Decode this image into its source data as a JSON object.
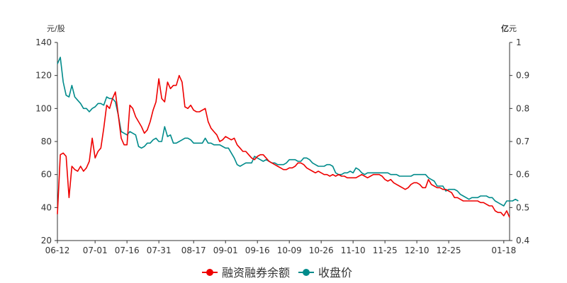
{
  "chart_data": {
    "type": "line",
    "left_unit": "元/股",
    "right_unit_bold": "亿",
    "right_unit_rest": "元",
    "left_axis": {
      "min": 20,
      "max": 140,
      "ticks": [
        "20",
        "40",
        "60",
        "80",
        "100",
        "120",
        "140"
      ]
    },
    "right_axis": {
      "min": 0.4,
      "max": 1.0,
      "ticks": [
        "0.4",
        "0.5",
        "0.6",
        "0.7",
        "0.8",
        "0.9",
        "1"
      ]
    },
    "x_tick_labels": [
      "06-12",
      "07-01",
      "07-16",
      "07-31",
      "08-17",
      "09-01",
      "09-16",
      "10-09",
      "10-26",
      "11-10",
      "11-25",
      "12-10",
      "12-25",
      "01-18"
    ],
    "x_tick_index": [
      0,
      13,
      24,
      35,
      47,
      58,
      69,
      80,
      91,
      102,
      113,
      124,
      135,
      154
    ],
    "series": [
      {
        "name": "融资融券余额",
        "axis": "right",
        "color": "#ee0000",
        "values": [
          0.48,
          0.66,
          0.665,
          0.655,
          0.53,
          0.625,
          0.615,
          0.61,
          0.625,
          0.61,
          0.62,
          0.64,
          0.71,
          0.65,
          0.67,
          0.68,
          0.74,
          0.81,
          0.8,
          0.83,
          0.85,
          0.78,
          0.71,
          0.69,
          0.69,
          0.81,
          0.8,
          0.775,
          0.76,
          0.745,
          0.725,
          0.735,
          0.76,
          0.795,
          0.82,
          0.89,
          0.83,
          0.82,
          0.88,
          0.86,
          0.87,
          0.87,
          0.9,
          0.88,
          0.805,
          0.8,
          0.81,
          0.795,
          0.79,
          0.79,
          0.795,
          0.8,
          0.76,
          0.74,
          0.73,
          0.72,
          0.7,
          0.705,
          0.715,
          0.71,
          0.705,
          0.71,
          0.69,
          0.68,
          0.67,
          0.67,
          0.66,
          0.65,
          0.645,
          0.655,
          0.66,
          0.66,
          0.65,
          0.64,
          0.635,
          0.63,
          0.625,
          0.62,
          0.615,
          0.615,
          0.62,
          0.62,
          0.625,
          0.635,
          0.635,
          0.63,
          0.62,
          0.615,
          0.61,
          0.605,
          0.61,
          0.605,
          0.6,
          0.6,
          0.595,
          0.6,
          0.595,
          0.6,
          0.595,
          0.595,
          0.59,
          0.59,
          0.59,
          0.59,
          0.595,
          0.6,
          0.595,
          0.59,
          0.595,
          0.6,
          0.6,
          0.6,
          0.595,
          0.585,
          0.58,
          0.585,
          0.575,
          0.57,
          0.565,
          0.56,
          0.555,
          0.56,
          0.57,
          0.575,
          0.575,
          0.57,
          0.56,
          0.56,
          0.585,
          0.57,
          0.565,
          0.56,
          0.56,
          0.555,
          0.555,
          0.55,
          0.545,
          0.53,
          0.53,
          0.525,
          0.52,
          0.52,
          0.52,
          0.52,
          0.52,
          0.52,
          0.515,
          0.515,
          0.51,
          0.505,
          0.505,
          0.49,
          0.485,
          0.485,
          0.475,
          0.49,
          0.47
        ],
        "label_note": ""
      },
      {
        "name": "收盘价",
        "axis": "left",
        "color": "#008b8b",
        "values": [
          127,
          131,
          116,
          108,
          107,
          114,
          107,
          105,
          103,
          100,
          100,
          98,
          100,
          101,
          103,
          103,
          102,
          107,
          106,
          106,
          104,
          96,
          86,
          85,
          84,
          86,
          85,
          84,
          77,
          76,
          77,
          79,
          79,
          81,
          82,
          80,
          80,
          89,
          83,
          84,
          79,
          79,
          80,
          81,
          82,
          82,
          81,
          79,
          79,
          79,
          79,
          82,
          79,
          79,
          78,
          78,
          78,
          77,
          76,
          76,
          73,
          70,
          66,
          65,
          66,
          67,
          67,
          67,
          71,
          70,
          69,
          68,
          69,
          68,
          67,
          67,
          66,
          66,
          66,
          67,
          69,
          69,
          69,
          68,
          68,
          70,
          70,
          69,
          67,
          66,
          65,
          65,
          65,
          66,
          66,
          65,
          61,
          60,
          60,
          61,
          61,
          62,
          61,
          64,
          63,
          61,
          60,
          61,
          61,
          61,
          61,
          61,
          61,
          61,
          61,
          60,
          60,
          60,
          59,
          59,
          59,
          59,
          59,
          60,
          60,
          60,
          60,
          60,
          58,
          57,
          56,
          53,
          53,
          53,
          50,
          51,
          51,
          51,
          50,
          48,
          47,
          46,
          45,
          46,
          46,
          46,
          47,
          47,
          47,
          46,
          46,
          44,
          43,
          42,
          41,
          44,
          44,
          44,
          45,
          44
        ]
      }
    ],
    "legend": [
      {
        "label": "融资融券余额",
        "color": "#ee0000"
      },
      {
        "label": "收盘价",
        "color": "#008b8b"
      }
    ]
  }
}
